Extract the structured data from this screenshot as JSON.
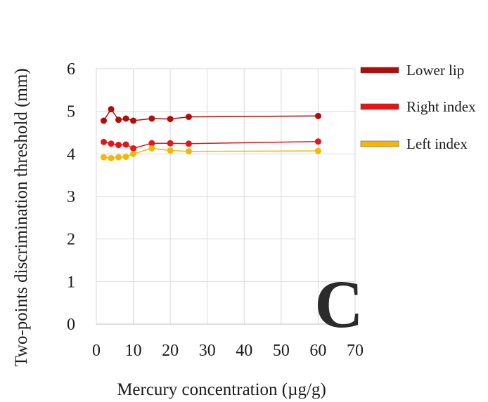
{
  "panel_label": "C",
  "chart_data": {
    "type": "line",
    "xlabel": "Mercury concentration (µg/g)",
    "ylabel": "Two-points discrimination  threshold (mm)",
    "xlim": [
      0,
      70
    ],
    "ylim": [
      0,
      6
    ],
    "x_ticks": [
      "0",
      "10",
      "20",
      "30",
      "40",
      "50",
      "60",
      "70"
    ],
    "y_ticks": [
      "0",
      "1",
      "2",
      "3",
      "4",
      "5",
      "6"
    ],
    "grid": true,
    "legend_position": "right",
    "series": [
      {
        "name": "Lower lip",
        "color": "#b50a0a",
        "x": [
          2,
          4,
          6,
          8,
          10,
          15,
          20,
          25,
          60
        ],
        "y": [
          4.78,
          5.05,
          4.8,
          4.83,
          4.78,
          4.83,
          4.82,
          4.87,
          4.89
        ]
      },
      {
        "name": "Right index",
        "color": "#ee1111",
        "x": [
          2,
          4,
          6,
          8,
          10,
          15,
          20,
          25,
          60
        ],
        "y": [
          4.28,
          4.24,
          4.21,
          4.22,
          4.13,
          4.25,
          4.25,
          4.24,
          4.29
        ]
      },
      {
        "name": "Left index",
        "color": "#f5b800",
        "x": [
          2,
          4,
          6,
          8,
          10,
          15,
          20,
          25,
          60
        ],
        "y": [
          3.92,
          3.9,
          3.92,
          3.93,
          4.0,
          4.13,
          4.08,
          4.06,
          4.07
        ]
      }
    ]
  }
}
